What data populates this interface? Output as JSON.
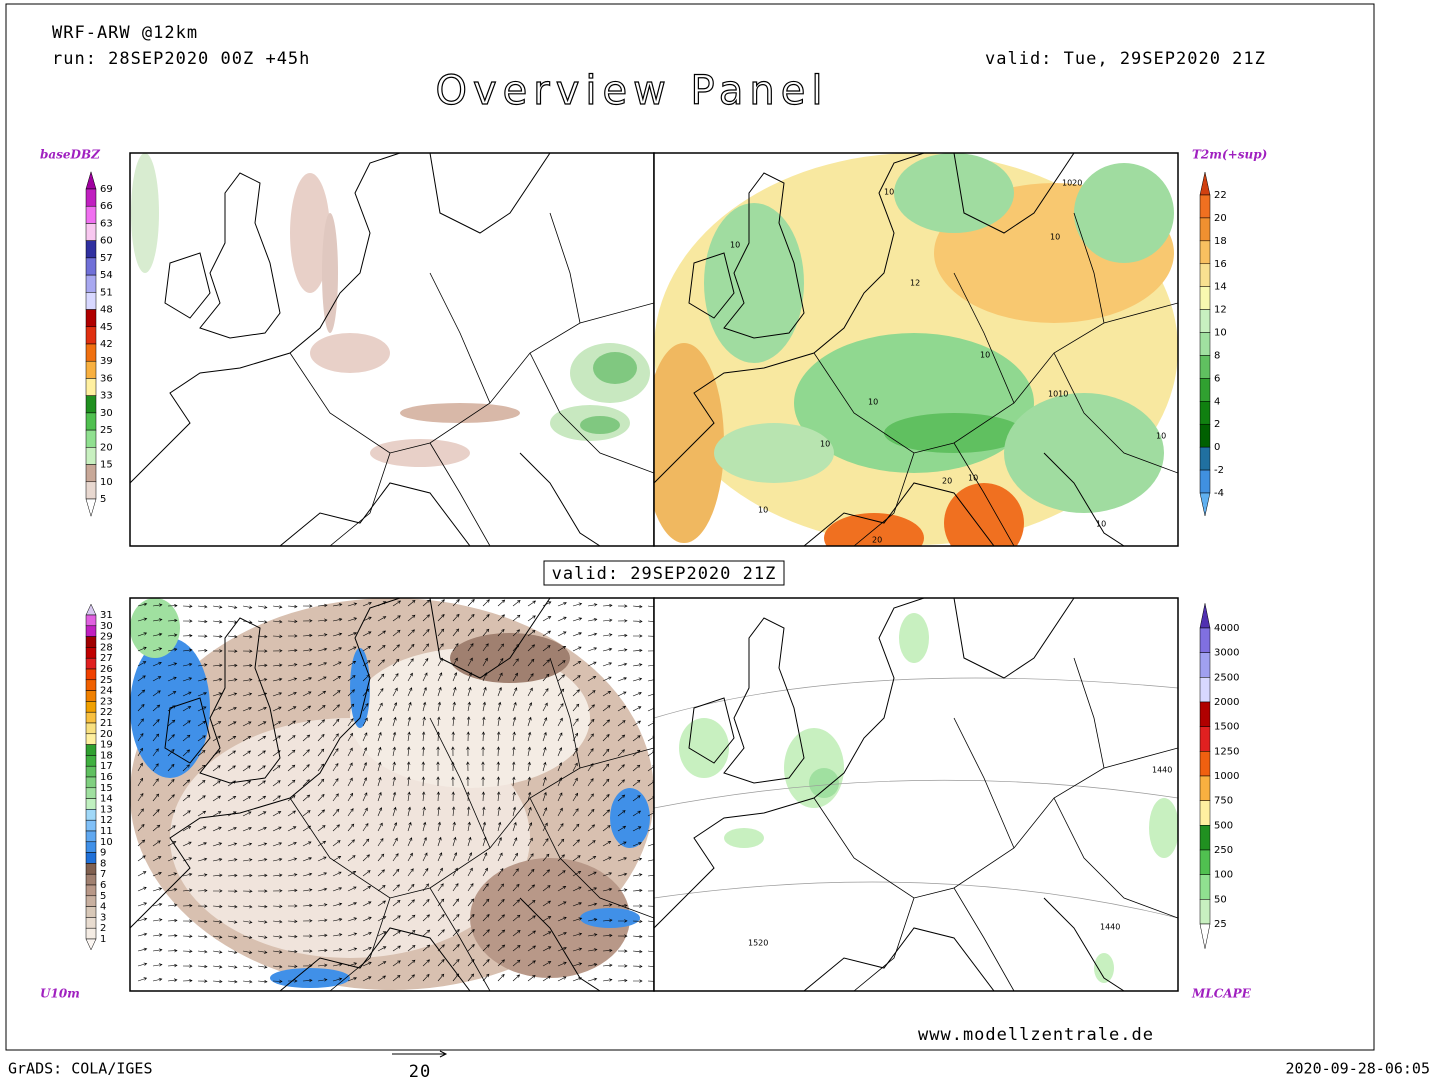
{
  "header": {
    "model": "WRF-ARW @12km",
    "run": "run: 28SEP2020 00Z +45h",
    "valid": "valid: Tue, 29SEP2020 21Z",
    "title": "Overview Panel"
  },
  "panels": [
    {
      "label": "baseDBZ",
      "colorbar": {
        "labels": [
          69,
          66,
          63,
          60,
          57,
          54,
          51,
          48,
          45,
          42,
          39,
          36,
          33,
          30,
          25,
          20,
          15,
          10,
          5
        ],
        "colors": [
          "#a000a0",
          "#c020c0",
          "#f070f0",
          "#f8c8f0",
          "#3030a0",
          "#7070d8",
          "#a8a8f0",
          "#d8d8ff",
          "#b00000",
          "#e03010",
          "#f07010",
          "#f8b040",
          "#fff0a0",
          "#209020",
          "#50c050",
          "#90e090",
          "#c8f0c0",
          "#c8a898",
          "#e8d8d0",
          "#ffffff"
        ]
      }
    },
    {
      "label": "T2m(+sup)",
      "colorbar": {
        "labels": [
          22,
          20,
          18,
          16,
          14,
          12,
          10,
          8,
          6,
          4,
          2,
          0,
          -2,
          -4
        ],
        "colors": [
          "#d04010",
          "#f07020",
          "#f09030",
          "#f8c060",
          "#f8e090",
          "#f8f8b0",
          "#c8f0c0",
          "#a0e0a0",
          "#60c060",
          "#30a030",
          "#108010",
          "#006000",
          "#2070a0",
          "#4090e0",
          "#60b0f0"
        ]
      },
      "contour_labels": [
        1020,
        10,
        10,
        10,
        12,
        10,
        1010,
        10,
        10,
        10,
        20,
        10,
        10,
        10,
        20
      ]
    },
    {
      "label": "U10m",
      "colorbar": {
        "labels": [
          31,
          30,
          29,
          28,
          27,
          26,
          25,
          24,
          23,
          22,
          21,
          20,
          19,
          18,
          17,
          16,
          15,
          14,
          13,
          12,
          11,
          10,
          9,
          8,
          7,
          6,
          5,
          4,
          3,
          2,
          1
        ],
        "colors": [
          "#d8c8f0",
          "#e060e0",
          "#c020c0",
          "#a00000",
          "#c00000",
          "#e02020",
          "#f04000",
          "#f06000",
          "#f08000",
          "#f0a000",
          "#f8c040",
          "#f8e080",
          "#fff0a0",
          "#30a030",
          "#40b040",
          "#60c060",
          "#80d080",
          "#a0e0a0",
          "#c0f0c0",
          "#a0d8f8",
          "#80c0f8",
          "#60a8f0",
          "#4090e8",
          "#2070d8",
          "#806050",
          "#a08070",
          "#b89888",
          "#c8b0a0",
          "#d8c8b8",
          "#e8dcd0",
          "#f4ece4",
          "#fbf6f2"
        ]
      }
    },
    {
      "label": "MLCAPE",
      "colorbar": {
        "labels": [
          4000,
          3000,
          2500,
          2000,
          1500,
          1250,
          1000,
          750,
          500,
          250,
          100,
          50,
          25
        ],
        "colors": [
          "#5030b0",
          "#8070e0",
          "#a0a0f0",
          "#d8d8ff",
          "#b00000",
          "#e02020",
          "#f06010",
          "#f8b040",
          "#fff0a0",
          "#209020",
          "#50c050",
          "#90e090",
          "#c8f0c0",
          "#ffffff"
        ]
      },
      "contour_labels": [
        1440,
        1440,
        1520
      ]
    }
  ],
  "center_valid": "valid: 29SEP2020 21Z",
  "footer": {
    "website": "www.modellzentrale.de",
    "software": "GrADS: COLA/IGES",
    "vector_scale": "20",
    "timestamp": "2020-09-28-06:05"
  }
}
